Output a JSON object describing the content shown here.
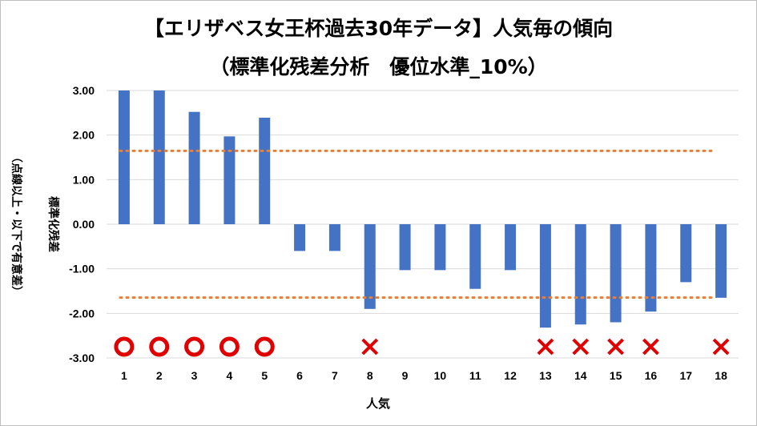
{
  "chart_data": {
    "type": "bar",
    "title": "【エリザベス女王杯過去30年データ】人気毎の傾向",
    "subtitle": "（標準化残差分析　優位水準_10%）",
    "xlabel": "人気",
    "ylabel": "標準化残差",
    "ylabel_note": "（点線以上・以下で有意差）",
    "ylim": [
      -3.0,
      3.0
    ],
    "yticks": [
      "3.00",
      "2.00",
      "1.00",
      "0.00",
      "-1.00",
      "-2.00",
      "-3.00"
    ],
    "categories": [
      "1",
      "2",
      "3",
      "4",
      "5",
      "6",
      "7",
      "8",
      "9",
      "10",
      "11",
      "12",
      "13",
      "14",
      "15",
      "16",
      "17",
      "18"
    ],
    "values": [
      3.0,
      3.0,
      2.52,
      1.97,
      2.39,
      -0.6,
      -0.6,
      -1.9,
      -1.03,
      -1.03,
      -1.45,
      -1.03,
      -2.32,
      -2.25,
      -2.2,
      -1.96,
      -1.3,
      -1.65
    ],
    "threshold_upper": 1.645,
    "threshold_lower": -1.645,
    "markers": [
      "circle",
      "circle",
      "circle",
      "circle",
      "circle",
      "",
      "",
      "cross",
      "",
      "",
      "",
      "",
      "cross",
      "cross",
      "cross",
      "cross",
      "",
      "cross"
    ],
    "gridlines": true,
    "colors": {
      "bar": "#4472C4",
      "threshold": "#ED7D31",
      "marker": "#E00000",
      "grid": "#D9D9D9"
    }
  }
}
